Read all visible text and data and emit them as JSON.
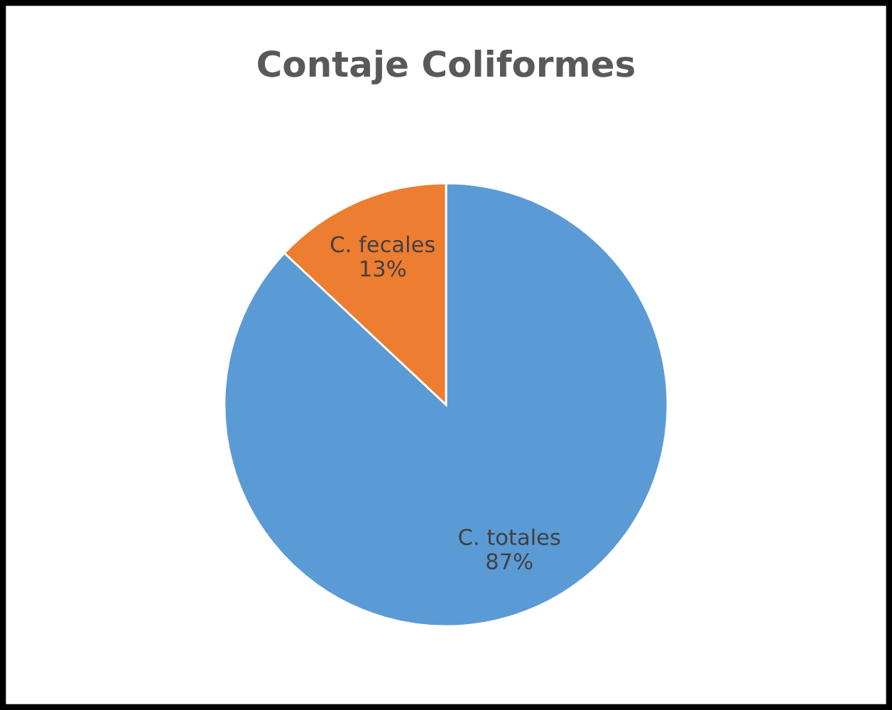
{
  "chart_data": {
    "type": "pie",
    "title": "Contaje Coliformes",
    "categories": [
      "C. totales",
      "C. fecales"
    ],
    "values": [
      87,
      13
    ],
    "colors": [
      "#5b9bd5",
      "#ed7d31"
    ],
    "value_labels": [
      "87%",
      "13%"
    ],
    "legend": false
  }
}
